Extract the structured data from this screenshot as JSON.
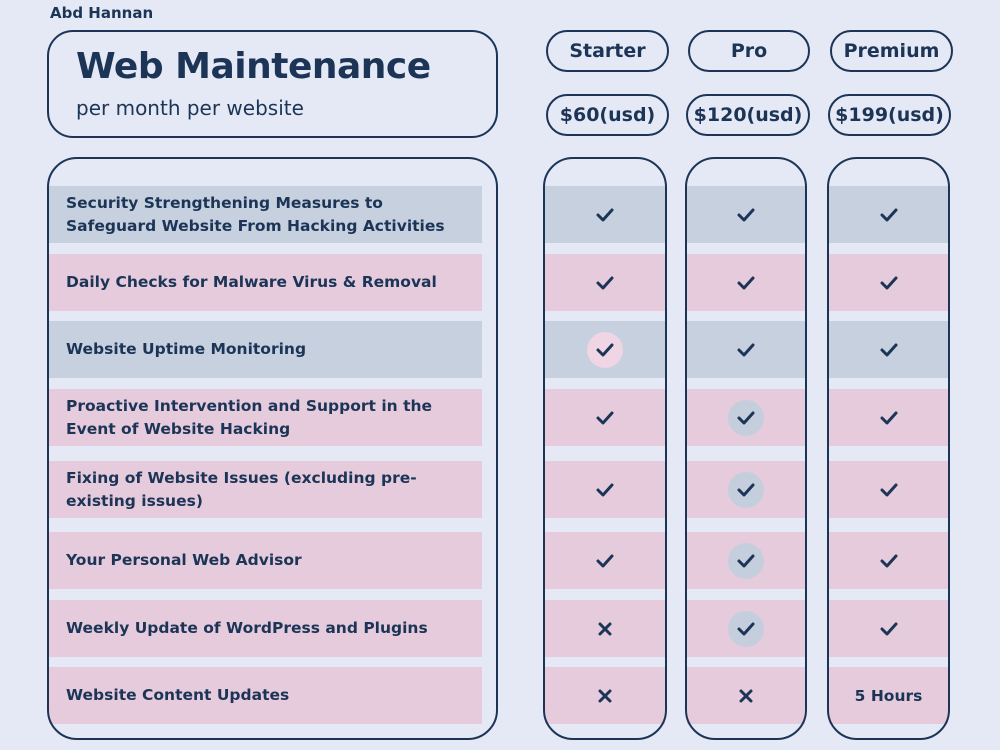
{
  "author": "Abd Hannan",
  "title": {
    "main": "Web Maintenance",
    "sub": "per month per website"
  },
  "plans": [
    {
      "name": "Starter",
      "price": "$60(usd)"
    },
    {
      "name": "Pro",
      "price": "$120(usd)"
    },
    {
      "name": "Premium",
      "price": "$199(usd)"
    }
  ],
  "colors": {
    "background": "#e5e9f5",
    "navy": "#1c3557",
    "row_blue": "#c6d0df",
    "row_pink": "#e6cbdd"
  },
  "features": [
    {
      "label": "Security Strengthening Measures to Safeguard Website From Hacking Activities",
      "row_color": "blue",
      "starter": "check",
      "pro": "check",
      "premium": "check"
    },
    {
      "label": "Daily Checks for Malware Virus & Removal",
      "row_color": "pink",
      "starter": "check",
      "pro": "check",
      "premium": "check"
    },
    {
      "label": "Website Uptime Monitoring",
      "row_color": "blue",
      "starter": "check-highlight",
      "pro": "check",
      "premium": "check"
    },
    {
      "label": "Proactive Intervention and Support in the Event of Website Hacking",
      "row_color": "pink",
      "starter": "check",
      "pro": "check-highlight",
      "premium": "check"
    },
    {
      "label": "Fixing of Website Issues (excluding pre-existing issues)",
      "row_color": "pink",
      "starter": "check",
      "pro": "check-highlight",
      "premium": "check"
    },
    {
      "label": "Your Personal Web Advisor",
      "row_color": "pink",
      "starter": "check",
      "pro": "check-highlight",
      "premium": "check"
    },
    {
      "label": "Weekly Update of WordPress and Plugins",
      "row_color": "pink",
      "starter": "cross",
      "pro": "check-highlight",
      "premium": "check"
    },
    {
      "label": "Website Content Updates",
      "row_color": "pink",
      "starter": "cross",
      "pro": "cross",
      "premium": "5 Hours"
    }
  ]
}
